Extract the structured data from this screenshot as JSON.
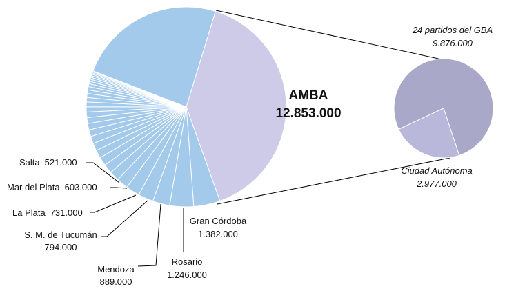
{
  "chart_data": [
    {
      "type": "pie",
      "categories": [
        "AMBA",
        "Gran Córdoba",
        "Rosario",
        "Mendoza",
        "S. M. de Tucumán",
        "La Plata",
        "Mar del Plata",
        "Salta",
        null,
        null,
        null,
        null,
        null,
        null,
        null,
        null,
        null,
        null,
        null,
        null,
        null,
        null,
        null,
        null,
        null,
        null,
        null,
        null,
        null,
        null,
        null,
        null,
        null
      ],
      "values": [
        12853000,
        1382000,
        1246000,
        889000,
        794000,
        731000,
        603000,
        521000,
        480000,
        450000,
        420000,
        400000,
        380000,
        350000,
        330000,
        310000,
        290000,
        270000,
        250000,
        230000,
        210000,
        190000,
        170000,
        150000,
        130000,
        110000,
        100000,
        90000,
        80000,
        70000,
        60000,
        50000,
        7700000
      ],
      "value_labels": [
        "12.853.000",
        "1.382.000",
        "1.246.000",
        "889.000",
        "794.000",
        "731.000",
        "603.000",
        "521.000",
        null,
        null,
        null,
        null,
        null,
        null,
        null,
        null,
        null,
        null,
        null,
        null,
        null,
        null,
        null,
        null,
        null,
        null,
        null,
        null,
        null,
        null,
        null,
        null,
        null
      ],
      "colors": [
        "#cdcbe8",
        "#a3c9eb",
        "#a3c9eb",
        "#a3c9eb",
        "#a3c9eb",
        "#a3c9eb",
        "#a3c9eb",
        "#a3c9eb",
        "#a3c9eb",
        "#a3c9eb",
        "#a3c9eb",
        "#a3c9eb",
        "#a3c9eb",
        "#a3c9eb",
        "#a3c9eb",
        "#a3c9eb",
        "#a3c9eb",
        "#a3c9eb",
        "#a3c9eb",
        "#a3c9eb",
        "#a3c9eb",
        "#a3c9eb",
        "#a3c9eb",
        "#a3c9eb",
        "#a3c9eb",
        "#a3c9eb",
        "#a3c9eb",
        "#a3c9eb",
        "#a3c9eb",
        "#a3c9eb",
        "#a3c9eb",
        "#a3c9eb",
        "#a3c9eb"
      ]
    },
    {
      "type": "pie",
      "categories": [
        "24 partidos del GBA",
        "Ciudad Autónoma"
      ],
      "values": [
        9876000,
        2977000
      ],
      "value_labels": [
        "9.876.000",
        "2.977.000"
      ],
      "colors": [
        "#a9a8c9",
        "#b9b8da"
      ]
    }
  ]
}
